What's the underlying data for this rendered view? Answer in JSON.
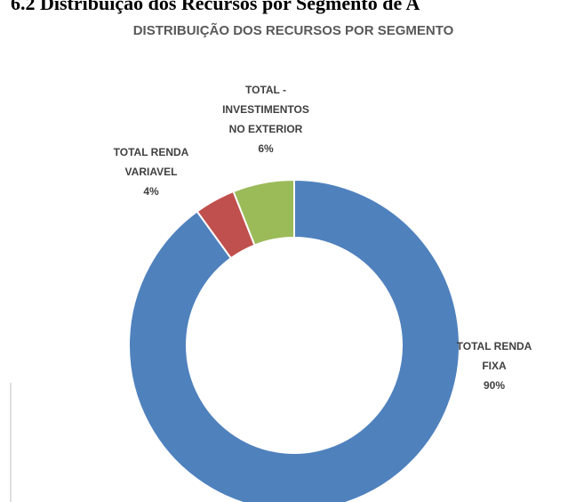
{
  "heading": "6.2 Distribuição dos Recursos por Segmento de A",
  "chart_data": {
    "type": "donut",
    "title": "DISTRIBUIÇÃO DOS RECURSOS POR SEGMENTO",
    "categories": [
      "TOTAL RENDA FIXA",
      "TOTAL RENDA VARIAVEL",
      "TOTAL - INVESTIMENTOS NO EXTERIOR"
    ],
    "values": [
      90,
      4,
      6
    ],
    "value_labels": [
      "90%",
      "4%",
      "6%"
    ],
    "colors": [
      "#4f81bd",
      "#c0504d",
      "#9bbb59"
    ]
  }
}
